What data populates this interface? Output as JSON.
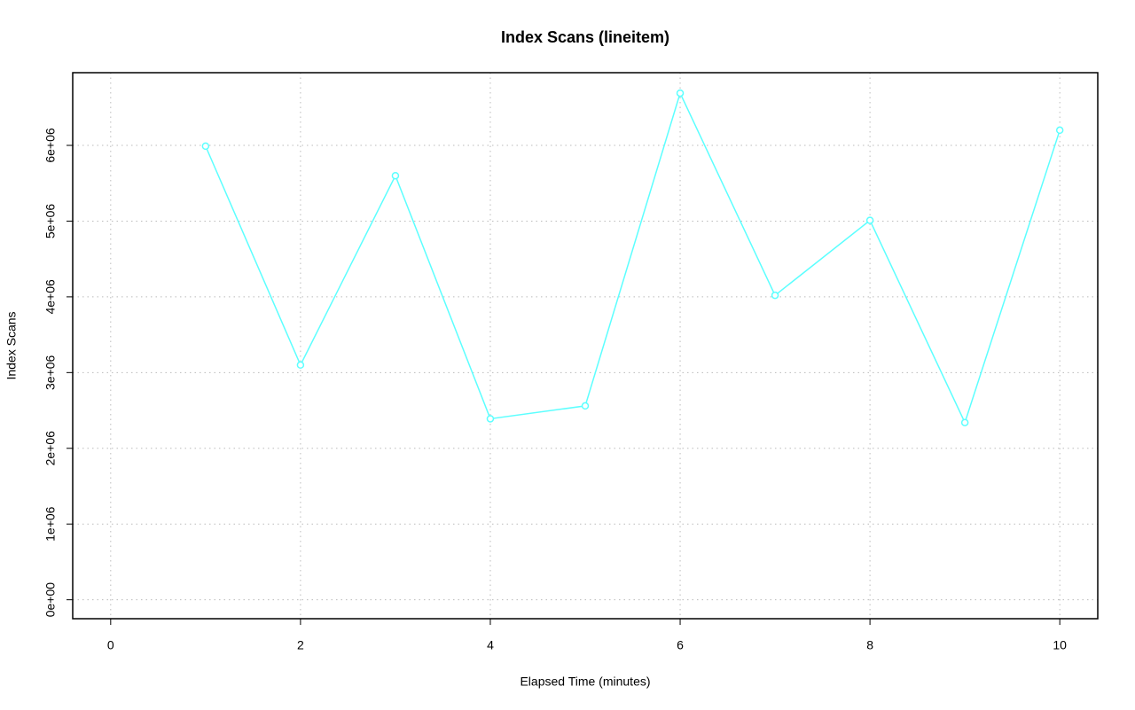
{
  "chart_data": {
    "type": "line",
    "title": "Index Scans (lineitem)",
    "x_label": "Elapsed Time (minutes)",
    "y_label": "Index Scans",
    "x": [
      1,
      2,
      3,
      4,
      5,
      6,
      7,
      8,
      9,
      10
    ],
    "values": [
      5990000,
      3100000,
      5600000,
      2390000,
      2560000,
      6690000,
      4020000,
      5010000,
      2340000,
      6200000
    ],
    "color": "#5cffff",
    "xlim": [
      -0.4,
      10.4
    ],
    "xticks": [
      0,
      2,
      4,
      6,
      8,
      10
    ],
    "ylim": [
      -250000,
      6960000
    ],
    "yticks": [
      {
        "value": 0,
        "label": "0e+00"
      },
      {
        "value": 1000000,
        "label": "1e+06"
      },
      {
        "value": 2000000,
        "label": "2e+06"
      },
      {
        "value": 3000000,
        "label": "3e+06"
      },
      {
        "value": 4000000,
        "label": "4e+06"
      },
      {
        "value": 5000000,
        "label": "5e+06"
      },
      {
        "value": 6000000,
        "label": "6e+06"
      }
    ],
    "grid": true
  }
}
